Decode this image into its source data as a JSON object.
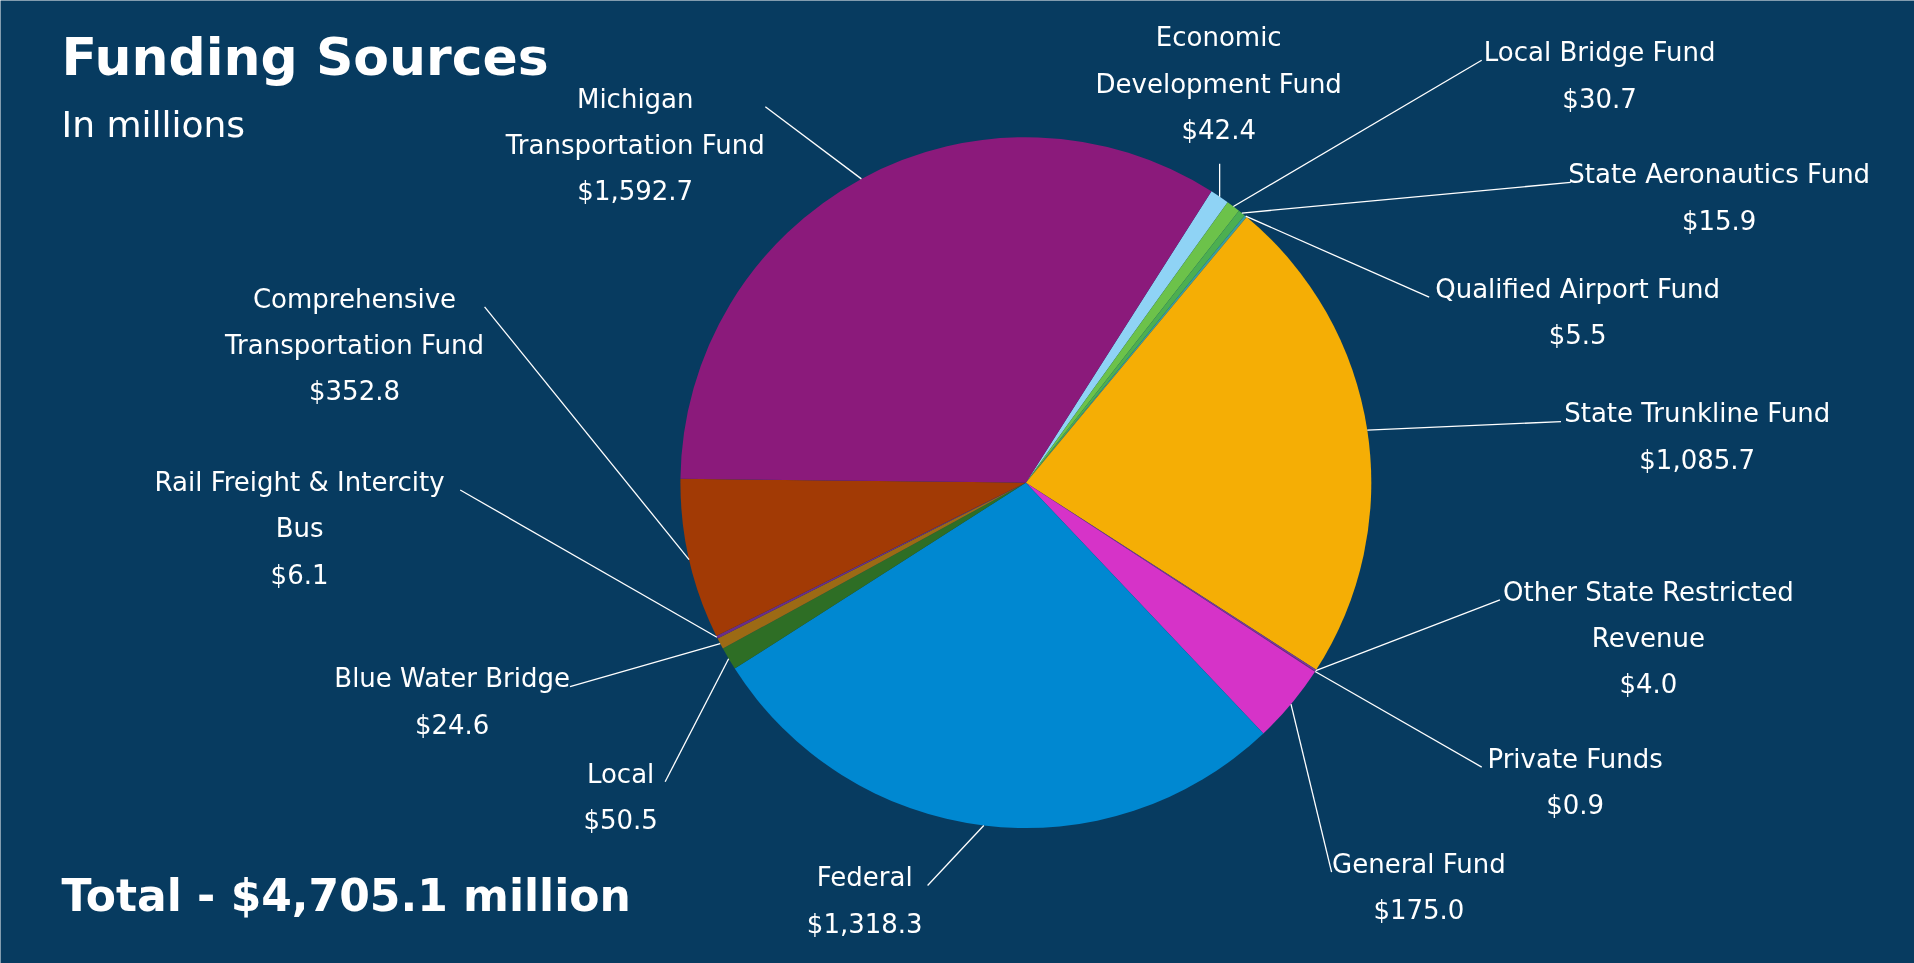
{
  "chart_data": {
    "type": "pie",
    "title": "Funding Sources",
    "subtitle": "In millions",
    "categories": [
      "Economic Development Fund",
      "Local Bridge Fund",
      "State Aeronautics Fund",
      "Qualified Airport Fund",
      "State Trunkline Fund",
      "Other State Restricted Revenue",
      "Private Funds",
      "General Fund",
      "Federal",
      "Local",
      "Blue Water Bridge",
      "Rail Freight & Intercity Bus",
      "Comprehensive Transportation Fund",
      "Michigan Transportation Fund"
    ],
    "values": [
      42.4,
      30.7,
      15.9,
      5.5,
      1085.7,
      4.0,
      0.9,
      175.0,
      1318.3,
      50.5,
      24.6,
      6.1,
      352.8,
      1592.7
    ],
    "value_labels": [
      "$42.4",
      "$30.7",
      "$15.9",
      "$5.5",
      "$1,085.7",
      "$4.0",
      "$0.9",
      "$175.0",
      "$1,318.3",
      "$50.5",
      "$24.6",
      "$6.1",
      "$352.8",
      "$1,592.7"
    ],
    "colors": [
      "#8fd3f5",
      "#6cc24a",
      "#4caf50",
      "#3aa0a0",
      "#f5ae05",
      "#7a3a9a",
      "#8a2080",
      "#d633c8",
      "#0088d1",
      "#2e6e25",
      "#9c6a14",
      "#6b2d8a",
      "#a23a05",
      "#8b1a7b"
    ],
    "annotations": [
      "Total - $4,705.1 million"
    ]
  }
}
